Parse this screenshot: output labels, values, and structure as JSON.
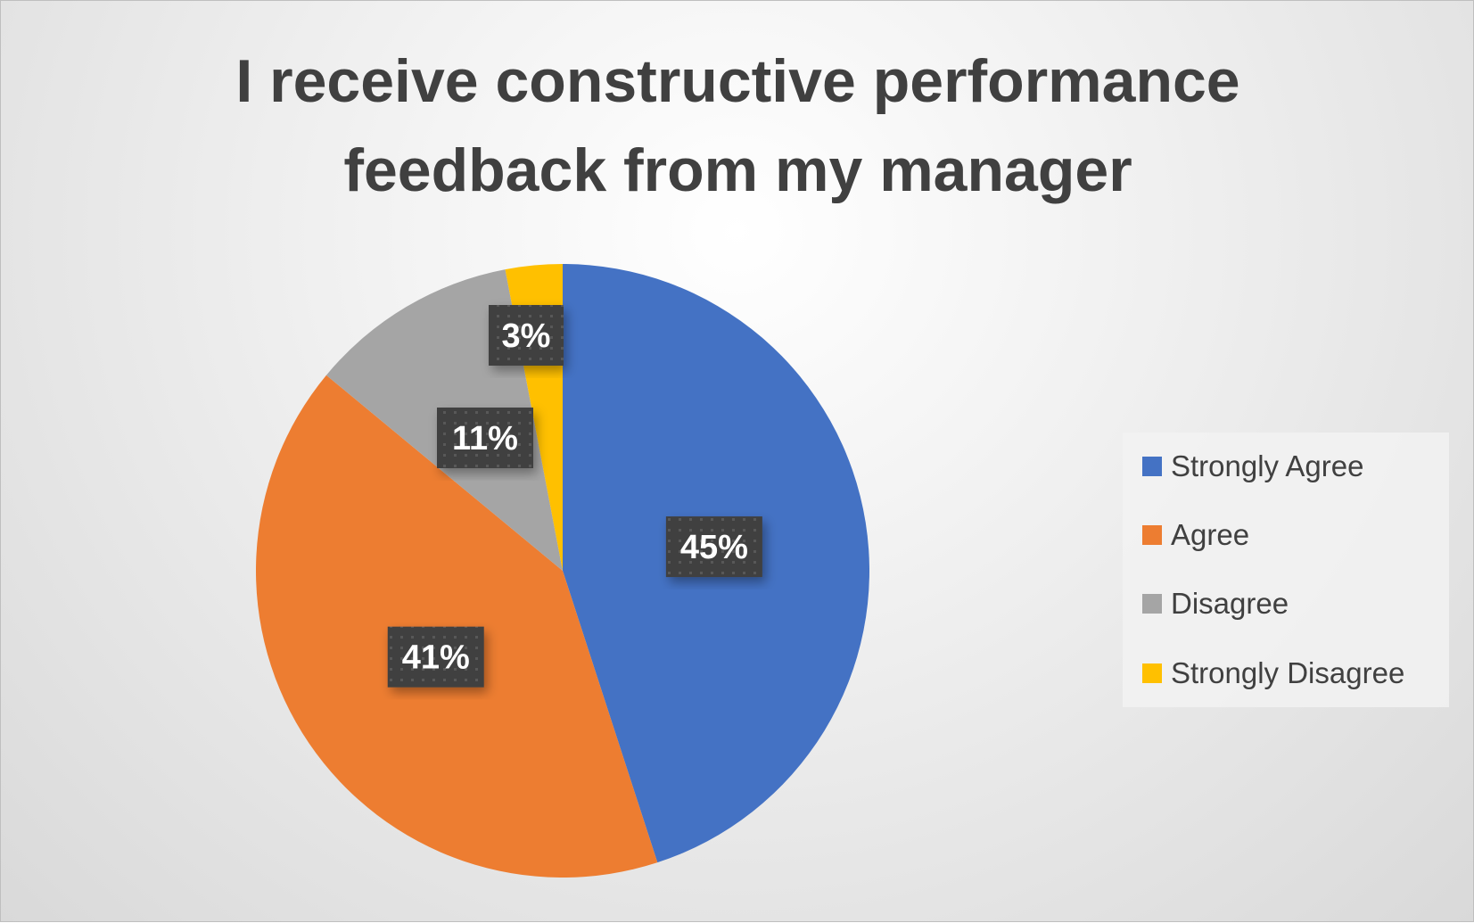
{
  "chart_data": {
    "type": "pie",
    "title": "I receive constructive performance feedback from my manager",
    "title_lines": [
      "I receive constructive performance",
      "feedback from my manager"
    ],
    "categories": [
      "Strongly Agree",
      "Agree",
      "Disagree",
      "Strongly Disagree"
    ],
    "values": [
      45,
      41,
      11,
      3
    ],
    "data_labels": [
      "45%",
      "41%",
      "11%",
      "3%"
    ],
    "colors": [
      "#4472C4",
      "#ED7D31",
      "#A5A5A5",
      "#FFC000"
    ],
    "start_angle_deg": 0,
    "direction": "clockwise",
    "legend_position": "right"
  }
}
